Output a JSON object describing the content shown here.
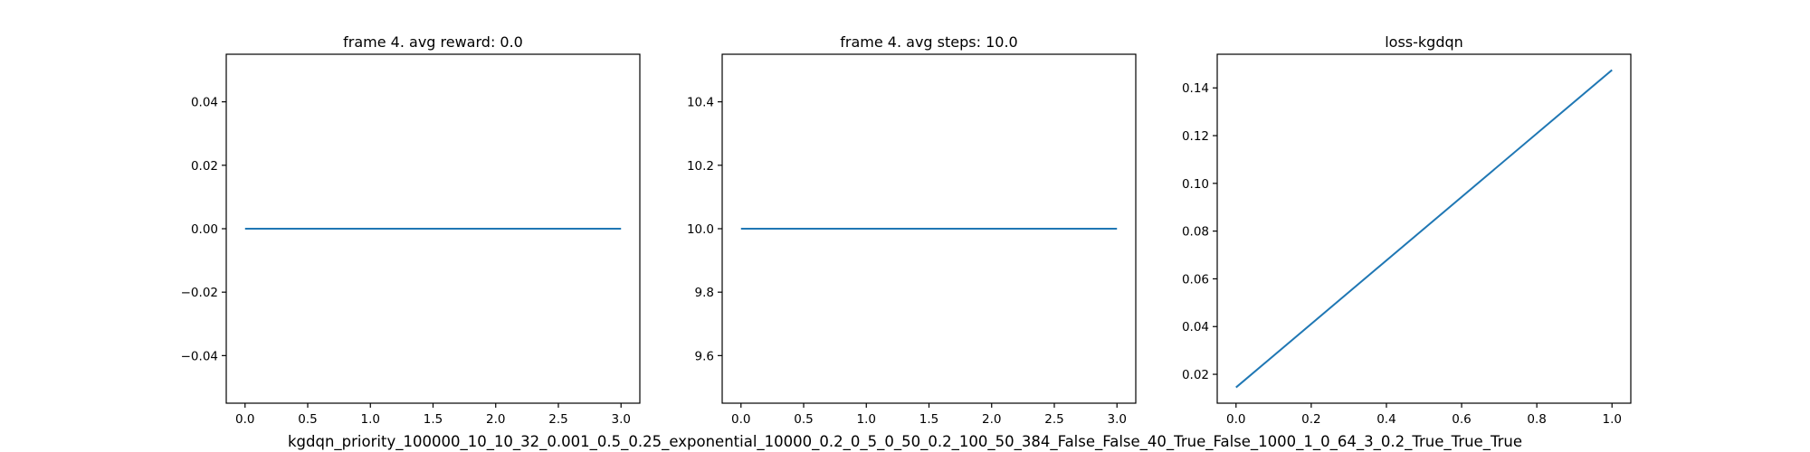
{
  "figure_label": "kgdqn_priority_100000_10_10_32_0.001_0.5_0.25_exponential_10000_0.2_0_5_0_50_0.2_100_50_384_False_False_40_True_False_1000_1_0_64_3_0.2_True_True_True",
  "colors": {
    "line": "#1f77b4",
    "axes": "#000000",
    "background": "#ffffff"
  },
  "chart_data": [
    {
      "type": "line",
      "title": "frame 4. avg reward: 0.0",
      "xlabel": "",
      "ylabel": "",
      "series": [
        {
          "x": [
            0,
            1,
            2,
            3
          ],
          "y": [
            0.0,
            0.0,
            0.0,
            0.0
          ]
        }
      ],
      "xlim": [
        -0.15,
        3.15
      ],
      "ylim": [
        -0.055,
        0.055
      ],
      "xticks": [
        0.0,
        0.5,
        1.0,
        1.5,
        2.0,
        2.5,
        3.0
      ],
      "xtick_labels": [
        "0.0",
        "0.5",
        "1.0",
        "1.5",
        "2.0",
        "2.5",
        "3.0"
      ],
      "yticks": [
        -0.04,
        -0.02,
        0.0,
        0.02,
        0.04
      ],
      "ytick_labels": [
        "−0.04",
        "−0.02",
        "0.00",
        "0.02",
        "0.04"
      ],
      "grid": false
    },
    {
      "type": "line",
      "title": "frame 4. avg steps: 10.0",
      "xlabel": "",
      "ylabel": "",
      "series": [
        {
          "x": [
            0,
            1,
            2,
            3
          ],
          "y": [
            10.0,
            10.0,
            10.0,
            10.0
          ]
        }
      ],
      "xlim": [
        -0.15,
        3.15
      ],
      "ylim": [
        9.45,
        10.55
      ],
      "xticks": [
        0.0,
        0.5,
        1.0,
        1.5,
        2.0,
        2.5,
        3.0
      ],
      "xtick_labels": [
        "0.0",
        "0.5",
        "1.0",
        "1.5",
        "2.0",
        "2.5",
        "3.0"
      ],
      "yticks": [
        9.6,
        9.8,
        10.0,
        10.2,
        10.4
      ],
      "ytick_labels": [
        "9.6",
        "9.8",
        "10.0",
        "10.2",
        "10.4"
      ],
      "grid": false
    },
    {
      "type": "line",
      "title": "loss-kgdqn",
      "xlabel": "",
      "ylabel": "",
      "series": [
        {
          "x": [
            0,
            1
          ],
          "y": [
            0.0145,
            0.1475
          ]
        }
      ],
      "xlim": [
        -0.05,
        1.05
      ],
      "ylim": [
        0.0079,
        0.1541
      ],
      "xticks": [
        0.0,
        0.2,
        0.4,
        0.6,
        0.8,
        1.0
      ],
      "xtick_labels": [
        "0.0",
        "0.2",
        "0.4",
        "0.6",
        "0.8",
        "1.0"
      ],
      "yticks": [
        0.02,
        0.04,
        0.06,
        0.08,
        0.1,
        0.12,
        0.14
      ],
      "ytick_labels": [
        "0.02",
        "0.04",
        "0.06",
        "0.08",
        "0.10",
        "0.12",
        "0.14"
      ],
      "grid": false
    }
  ]
}
